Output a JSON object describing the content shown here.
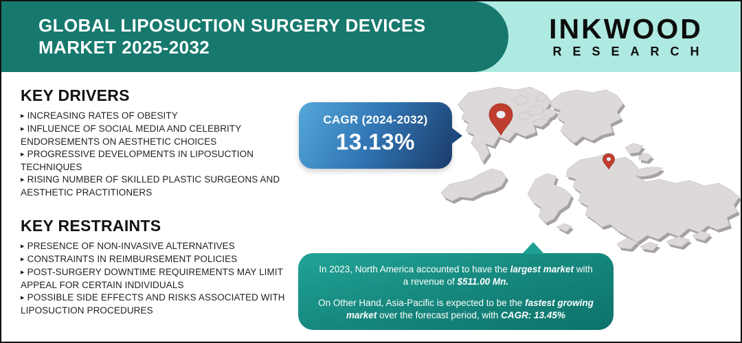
{
  "bullet_glyph": "▸",
  "header": {
    "title_line1": "GLOBAL LIPOSUCTION SURGERY DEVICES",
    "title_line2": "MARKET 2025-2032",
    "logo_name": "INKWOOD",
    "logo_sub": "RESEARCH"
  },
  "key_drivers": {
    "heading": "KEY DRIVERS",
    "items": [
      "INCREASING RATES OF OBESITY",
      "INFLUENCE OF SOCIAL MEDIA AND CELEBRITY ENDORSEMENTS ON AESTHETIC CHOICES",
      "PROGRESSIVE DEVELOPMENTS IN LIPOSUCTION TECHNIQUES",
      "RISING NUMBER OF SKILLED PLASTIC SURGEONS AND AESTHETIC PRACTITIONERS"
    ]
  },
  "key_restraints": {
    "heading": "KEY RESTRAINTS",
    "items": [
      "PRESENCE OF NON-INVASIVE ALTERNATIVES",
      "CONSTRAINTS IN REIMBURSEMENT POLICIES",
      "POST-SURGERY DOWNTIME REQUIREMENTS MAY LIMIT APPEAL FOR CERTAIN INDIVIDUALS",
      "POSSIBLE SIDE EFFECTS AND RISKS ASSOCIATED WITH LIPOSUCTION PROCEDURES"
    ]
  },
  "cagr_callout": {
    "label": "CAGR (2024-2032)",
    "value": "13.13%"
  },
  "insight_box": {
    "paragraph1": [
      {
        "t": "In 2023, North America accounted to have the ",
        "em": false
      },
      {
        "t": "largest market",
        "em": true
      },
      {
        "t": " with a revenue of ",
        "em": false
      },
      {
        "t": "$511.00 Mn.",
        "em": true
      }
    ],
    "paragraph2": [
      {
        "t": "On Other Hand, Asia-Pacific is expected to be the ",
        "em": false
      },
      {
        "t": "fastest growing market",
        "em": true
      },
      {
        "t": " over the forecast period, with ",
        "em": false
      },
      {
        "t": "CAGR: 13.45%",
        "em": true
      }
    ]
  },
  "map": {
    "pins": [
      "north-america-pin",
      "europe-pin"
    ]
  },
  "colors": {
    "banner_teal": "#17796e",
    "strip_mint": "#aeeae1",
    "cagr_blue_light": "#55a7da",
    "cagr_blue_dark": "#1b3b69",
    "insight_teal_light": "#21a396",
    "insight_teal_dark": "#0d7269",
    "pin_red": "#bf3d2f",
    "land_gray": "#dcd9d8",
    "text_dark": "#1f1f1f"
  }
}
